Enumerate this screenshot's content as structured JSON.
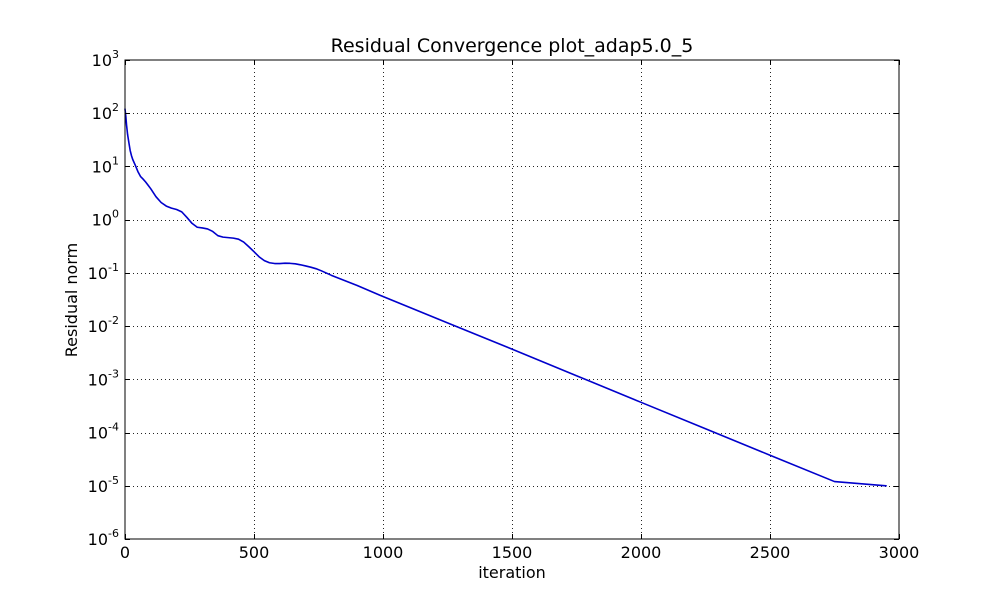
{
  "chart_data": {
    "type": "line",
    "title": "Residual Convergence plot_adap5.0_5",
    "xlabel": "iteration",
    "ylabel": "Residual norm",
    "xlim": [
      0,
      3000
    ],
    "ylim": [
      1e-06,
      1000
    ],
    "yscale": "log",
    "grid": true,
    "x_ticks": [
      {
        "value": 0,
        "label": "0"
      },
      {
        "value": 500,
        "label": "500"
      },
      {
        "value": 1000,
        "label": "1000"
      },
      {
        "value": 1500,
        "label": "1500"
      },
      {
        "value": 2000,
        "label": "2000"
      },
      {
        "value": 2500,
        "label": "2500"
      },
      {
        "value": 3000,
        "label": "3000"
      }
    ],
    "y_ticks": [
      {
        "value": 1e-06,
        "base": "10",
        "exp": "-6"
      },
      {
        "value": 1e-05,
        "base": "10",
        "exp": "-5"
      },
      {
        "value": 0.0001,
        "base": "10",
        "exp": "-4"
      },
      {
        "value": 0.001,
        "base": "10",
        "exp": "-3"
      },
      {
        "value": 0.01,
        "base": "10",
        "exp": "-2"
      },
      {
        "value": 0.1,
        "base": "10",
        "exp": "-1"
      },
      {
        "value": 1,
        "base": "10",
        "exp": "0"
      },
      {
        "value": 10,
        "base": "10",
        "exp": "1"
      },
      {
        "value": 100,
        "base": "10",
        "exp": "2"
      },
      {
        "value": 1000,
        "base": "10",
        "exp": "3"
      }
    ],
    "series": [
      {
        "color": "#0000cc",
        "x": [
          0,
          3,
          6,
          10,
          15,
          20,
          25,
          30,
          40,
          50,
          60,
          70,
          80,
          90,
          100,
          120,
          140,
          160,
          180,
          200,
          220,
          240,
          260,
          280,
          300,
          320,
          340,
          360,
          380,
          400,
          420,
          440,
          460,
          480,
          500,
          520,
          540,
          560,
          580,
          600,
          620,
          640,
          660,
          680,
          700,
          720,
          740,
          760,
          800,
          900,
          1000,
          1250,
          1500,
          1750,
          2000,
          2250,
          2500,
          2750,
          2950
        ],
        "y": [
          120,
          90,
          60,
          40,
          28,
          20,
          16,
          13.5,
          10.5,
          8,
          6.5,
          5.8,
          5.1,
          4.4,
          3.8,
          2.7,
          2.1,
          1.8,
          1.65,
          1.55,
          1.4,
          1.1,
          0.85,
          0.72,
          0.7,
          0.67,
          0.6,
          0.5,
          0.47,
          0.46,
          0.45,
          0.43,
          0.38,
          0.31,
          0.25,
          0.2,
          0.17,
          0.155,
          0.15,
          0.15,
          0.152,
          0.151,
          0.148,
          0.142,
          0.135,
          0.128,
          0.12,
          0.11,
          0.09,
          0.058,
          0.036,
          0.0115,
          0.0037,
          0.00117,
          0.00037,
          0.000118,
          3.75e-05,
          1.2e-05,
          1e-05
        ]
      }
    ]
  }
}
